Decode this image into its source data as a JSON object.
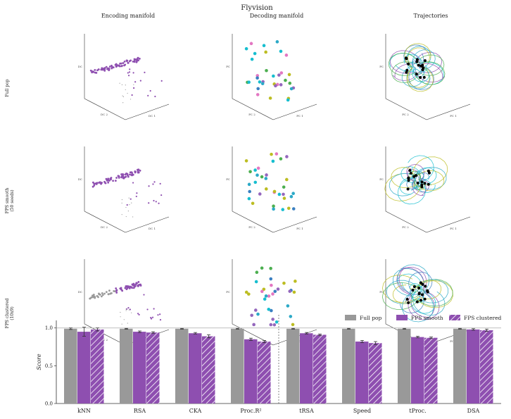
{
  "figure": {
    "title": "Flyvision",
    "columns": [
      "Encoding manifold",
      "Decoding manifold",
      "Trajectories"
    ],
    "rows": [
      {
        "label_lines": [
          "Full pop"
        ]
      },
      {
        "label_lines": [
          "FPS smooth",
          "(50 seeds)"
        ]
      },
      {
        "label_lines": [
          "FPS clustered",
          "(10x9)"
        ]
      }
    ],
    "encoding_axes": {
      "a": "DC 2",
      "b": "DC 1",
      "c": "DC"
    },
    "decoding_axes": {
      "a": "PC 2",
      "b": "PC 1",
      "c": "PC"
    }
  },
  "colors": {
    "full_pop": "#999999",
    "fps": "#8e4fb0",
    "clusters": [
      "#2ca9c7",
      "#3a7fc1",
      "#4caf50",
      "#bcbd22",
      "#e377c2",
      "#9467bd",
      "#17becf"
    ]
  },
  "chart_data": {
    "type": "bar",
    "categories": [
      "kNN",
      "RSA",
      "CKA",
      "Proc.R²",
      "tRSA",
      "Speed",
      "tProc.",
      "DSA"
    ],
    "series": [
      {
        "name": "Full pop",
        "values": [
          0.99,
          0.99,
          0.99,
          0.99,
          0.99,
          0.99,
          0.99,
          0.99
        ],
        "errors": [
          0.01,
          0.005,
          0.005,
          0.005,
          0.005,
          0.005,
          0.005,
          0.005
        ]
      },
      {
        "name": "FPS smooth",
        "values": [
          0.95,
          0.95,
          0.93,
          0.85,
          0.93,
          0.82,
          0.88,
          0.98
        ],
        "errors": [
          0.06,
          0.01,
          0.01,
          0.015,
          0.01,
          0.015,
          0.01,
          0.01
        ]
      },
      {
        "name": "FPS clustered",
        "values": [
          0.98,
          0.94,
          0.89,
          0.82,
          0.91,
          0.8,
          0.87,
          0.97
        ],
        "errors": [
          0.02,
          0.01,
          0.02,
          0.015,
          0.01,
          0.02,
          0.01,
          0.015
        ]
      }
    ],
    "ylabel": "Score",
    "ylim": [
      0,
      1.1
    ],
    "yticks": [
      "0.0",
      "0.5",
      "1.0"
    ],
    "reference_line": 1.0,
    "legend": "top-right"
  }
}
